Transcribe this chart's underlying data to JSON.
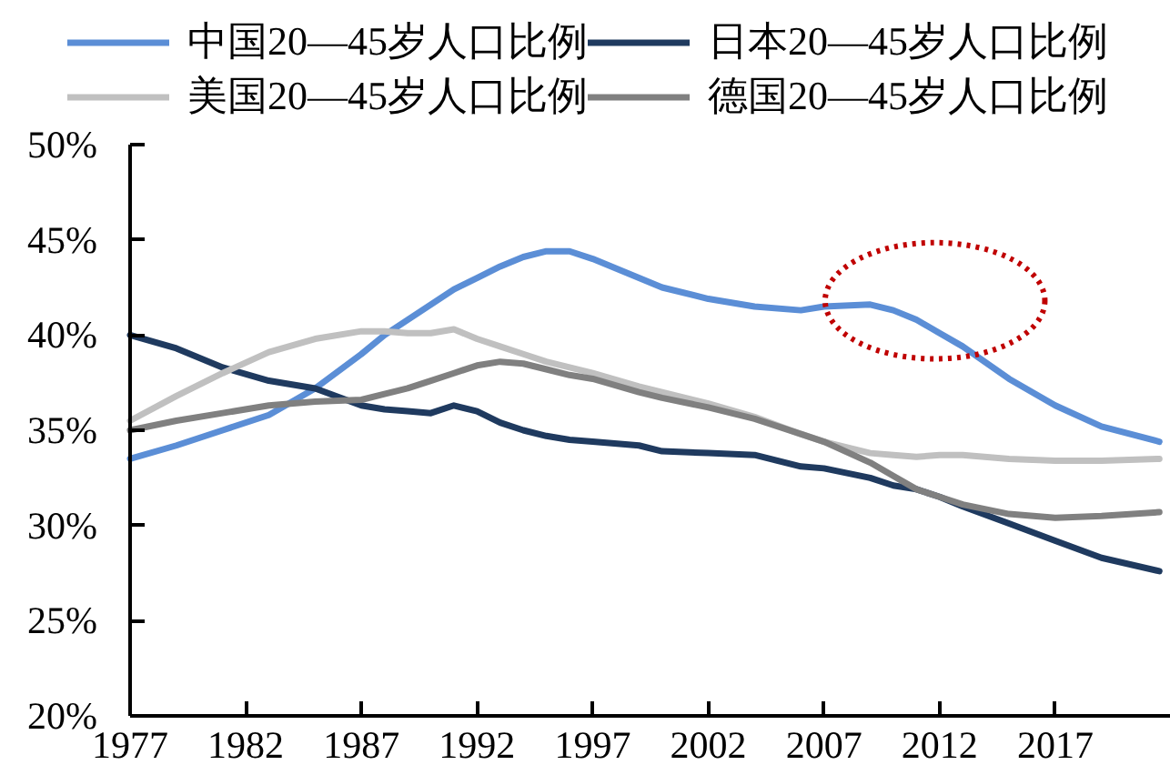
{
  "chart_data": {
    "type": "line",
    "x": [
      1977,
      1979,
      1981,
      1983,
      1985,
      1987,
      1988,
      1989,
      1990,
      1991,
      1992,
      1993,
      1994,
      1995,
      1996,
      1997,
      1999,
      2000,
      2002,
      2004,
      2006,
      2007,
      2009,
      2010,
      2011,
      2012,
      2013,
      2015,
      2017,
      2019,
      2021.5
    ],
    "series": [
      {
        "name": "中国20—45岁人口比例",
        "color": "#5b8ed6",
        "values": [
          33.5,
          34.2,
          35.0,
          35.8,
          37.2,
          39.0,
          40.0,
          40.8,
          41.6,
          42.4,
          43.0,
          43.6,
          44.1,
          44.4,
          44.4,
          44.0,
          43.0,
          42.5,
          41.9,
          41.5,
          41.3,
          41.5,
          41.6,
          41.3,
          40.8,
          40.1,
          39.4,
          37.7,
          36.3,
          35.2,
          34.4
        ]
      },
      {
        "name": "日本20—45岁人口比例",
        "color": "#1f3a5f",
        "values": [
          40.0,
          39.3,
          38.3,
          37.6,
          37.2,
          36.3,
          36.1,
          36.0,
          35.9,
          36.3,
          36.0,
          35.4,
          35.0,
          34.7,
          34.5,
          34.4,
          34.2,
          33.9,
          33.8,
          33.7,
          33.1,
          33.0,
          32.5,
          32.1,
          31.9,
          31.5,
          31.0,
          30.1,
          29.2,
          28.3,
          27.6
        ]
      },
      {
        "name": "美国20—45岁人口比例",
        "color": "#c0c0c0",
        "values": [
          35.5,
          36.8,
          38.0,
          39.1,
          39.8,
          40.2,
          40.2,
          40.1,
          40.1,
          40.3,
          39.8,
          39.4,
          39.0,
          38.6,
          38.3,
          38.0,
          37.3,
          37.0,
          36.4,
          35.7,
          34.8,
          34.4,
          33.8,
          33.7,
          33.6,
          33.7,
          33.7,
          33.5,
          33.4,
          33.4,
          33.5
        ]
      },
      {
        "name": "德国20—45岁人口比例",
        "color": "#808080",
        "values": [
          35.0,
          35.5,
          35.9,
          36.3,
          36.5,
          36.6,
          36.9,
          37.2,
          37.6,
          38.0,
          38.4,
          38.6,
          38.5,
          38.2,
          37.9,
          37.7,
          37.0,
          36.7,
          36.2,
          35.6,
          34.8,
          34.4,
          33.3,
          32.6,
          31.9,
          31.5,
          31.1,
          30.6,
          30.4,
          30.5,
          30.7
        ]
      }
    ],
    "xlim": [
      1977,
      2022
    ],
    "xticks": [
      1977,
      1982,
      1987,
      1992,
      1997,
      2002,
      2007,
      2012,
      2017
    ],
    "ylim": [
      20,
      50
    ],
    "yticks": [
      {
        "value": 20,
        "label": "20%"
      },
      {
        "value": 25,
        "label": "25%"
      },
      {
        "value": 30,
        "label": "30%"
      },
      {
        "value": 35,
        "label": "35%"
      },
      {
        "value": 40,
        "label": "40%"
      },
      {
        "value": 45,
        "label": "45%"
      },
      {
        "value": 50,
        "label": "50%"
      }
    ],
    "grid": false,
    "legend": "top"
  }
}
